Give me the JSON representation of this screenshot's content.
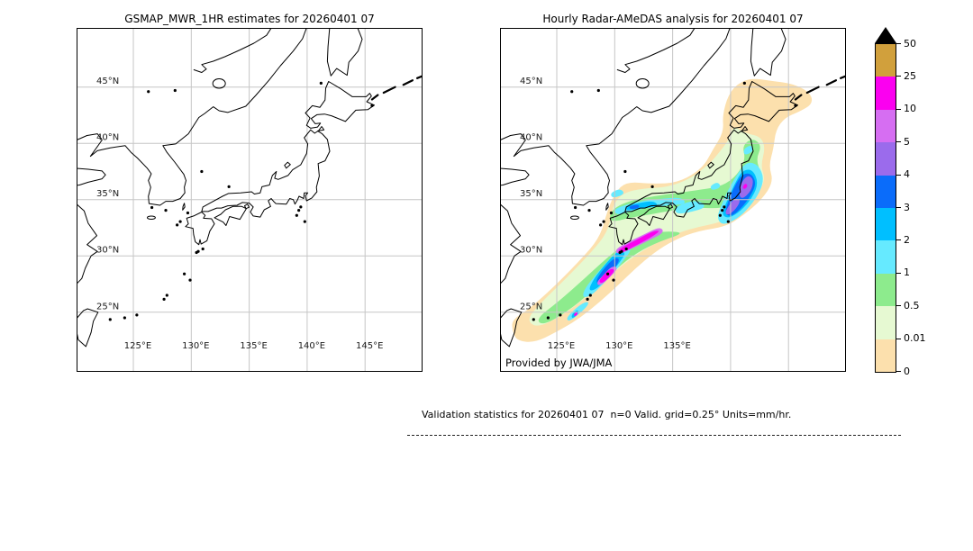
{
  "panels": [
    {
      "title": "GSMAP_MWR_1HR estimates for 20260401 07",
      "lat_labels": [
        "45°N",
        "40°N",
        "35°N",
        "30°N",
        "25°N"
      ],
      "lon_labels": [
        "125°E",
        "130°E",
        "135°E",
        "140°E",
        "145°E"
      ],
      "credit": ""
    },
    {
      "title": "Hourly Radar-AMeDAS analysis for 20260401 07",
      "lat_labels": [
        "45°N",
        "40°N",
        "35°N",
        "30°N",
        "25°N"
      ],
      "lon_labels": [
        "125°E",
        "130°E",
        "135°E"
      ],
      "credit": "Provided by JWA/JMA"
    }
  ],
  "colorbar": {
    "tick_labels": [
      "50",
      "25",
      "10",
      "5",
      "4",
      "3",
      "2",
      "1",
      "0.5",
      "0.01",
      "0"
    ],
    "segment_colors_top_to_bottom": [
      "#d1a03c",
      "#fb00f0",
      "#d66ef2",
      "#9b6bec",
      "#0a6cfa",
      "#00bfff",
      "#66eaff",
      "#8deb8d",
      "#e6f9d2",
      "#fce0ad"
    ],
    "extend_triangle_color": "#000000"
  },
  "footer": {
    "text": "Validation statistics for 20260401 07  n=0 Valid. grid=0.25° Units=mm/hr."
  },
  "chart_data": {
    "type": "heatmap",
    "units": "mm/hr",
    "gridlines": true,
    "colorbar_levels": [
      0,
      0.01,
      0.5,
      1,
      2,
      3,
      4,
      5,
      10,
      25,
      50
    ],
    "colorbar_colors_low_to_high": [
      "#fce0ad",
      "#e6f9d2",
      "#8deb8d",
      "#66eaff",
      "#00bfff",
      "#0a6cfa",
      "#9b6bec",
      "#d66ef2",
      "#fb00f0",
      "#d1a03c"
    ],
    "colorbar_extend_above": "black triangle arrow above 50",
    "subplots": [
      {
        "title": "GSMAP_MWR_1HR estimates for 20260401 07",
        "extent_lon_deg_east": [
          120,
          150
        ],
        "extent_lat_deg_north": [
          20,
          50
        ],
        "x_tick_labels": [
          "125°E",
          "130°E",
          "135°E",
          "140°E",
          "145°E"
        ],
        "y_tick_labels": [
          "25°N",
          "30°N",
          "35°N",
          "40°N",
          "45°N"
        ],
        "data_summary": "empty map of Japan region, no precipitation plotted (n=0 valid points)"
      },
      {
        "title": "Hourly Radar-AMeDAS analysis for 20260401 07",
        "extent_lon_deg_east": [
          120,
          150
        ],
        "extent_lat_deg_north": [
          20,
          50
        ],
        "x_tick_labels": [
          "125°E",
          "130°E",
          "135°E"
        ],
        "y_tick_labels": [
          "25°N",
          "30°N",
          "35°N",
          "40°N",
          "45°N"
        ],
        "credit": "Provided by JWA/JMA",
        "data_summary": "SW-NE precipitation band from near Okinawa through the Ryukyus, Kyushu, Shikoku and central Honshu to offshore Kanto/Tohoku; light rain (0-1 mm/hr, peach/green) also covering Hokkaido; 1-5 mm/hr (cyan/blue) cores over the Seto area, southwest island chain and a large Pacific blob off Kanto-Tohoku with 4-10 mm/hr purple cores; 10-25 mm/hr magenta maxima south of Kyushu toward the Kii channel, near Amami, and small spots near Okinawa and offshore Tohoku"
      }
    ]
  }
}
